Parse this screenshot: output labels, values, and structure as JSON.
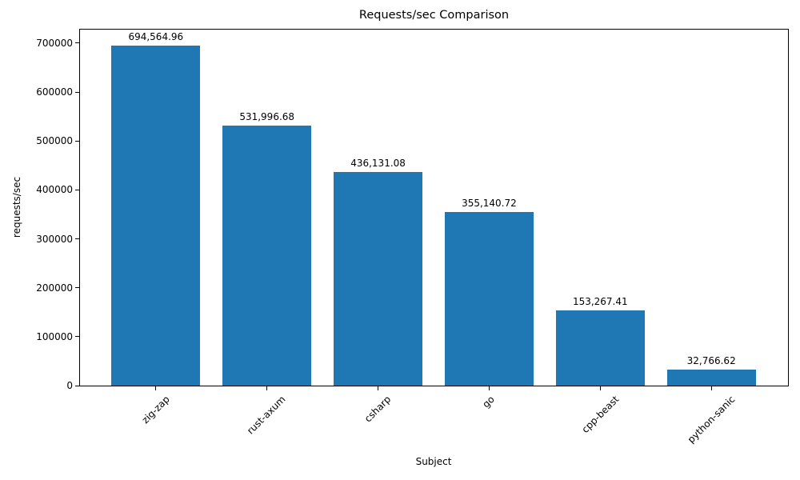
{
  "chart_data": {
    "type": "bar",
    "title": "Requests/sec Comparison",
    "xlabel": "Subject",
    "ylabel": "requests/sec",
    "categories": [
      "zig-zap",
      "rust-axum",
      "csharp",
      "go",
      "cpp-beast",
      "python-sanic"
    ],
    "values": [
      694564.96,
      531996.68,
      436131.08,
      355140.72,
      153267.41,
      32766.62
    ],
    "value_labels": [
      "694,564.96",
      "531,996.68",
      "436,131.08",
      "355,140.72",
      "153,267.41",
      "32,766.62"
    ],
    "yticks": [
      0,
      100000,
      200000,
      300000,
      400000,
      500000,
      600000,
      700000
    ],
    "ytick_labels": [
      "0",
      "100000",
      "200000",
      "300000",
      "400000",
      "500000",
      "600000",
      "700000"
    ],
    "ylim": [
      0,
      729293
    ],
    "bar_color": "#1f77b4",
    "text_color": "#000000",
    "grid": false,
    "legend": "none",
    "x_tick_rotation_deg": 45
  }
}
